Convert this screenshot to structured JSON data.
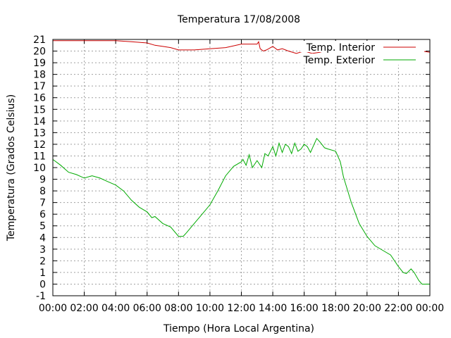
{
  "chart_data": {
    "type": "line",
    "title": "Temperatura 17/08/2008",
    "xlabel": "Tiempo (Hora Local Argentina)",
    "ylabel": "Temperatura (Grados Celsius)",
    "x_unit": "hours",
    "xlim": [
      0,
      24
    ],
    "ylim": [
      -1,
      21
    ],
    "x_ticks": [
      {
        "value": 0,
        "label": "00:00"
      },
      {
        "value": 2,
        "label": "02:00"
      },
      {
        "value": 4,
        "label": "04:00"
      },
      {
        "value": 6,
        "label": "06:00"
      },
      {
        "value": 8,
        "label": "08:00"
      },
      {
        "value": 10,
        "label": "10:00"
      },
      {
        "value": 12,
        "label": "12:00"
      },
      {
        "value": 14,
        "label": "14:00"
      },
      {
        "value": 16,
        "label": "16:00"
      },
      {
        "value": 18,
        "label": "18:00"
      },
      {
        "value": 20,
        "label": "20:00"
      },
      {
        "value": 22,
        "label": "22:00"
      },
      {
        "value": 24,
        "label": "00:00"
      }
    ],
    "y_ticks": [
      -1,
      0,
      1,
      2,
      3,
      4,
      5,
      6,
      7,
      8,
      9,
      10,
      11,
      12,
      13,
      14,
      15,
      16,
      17,
      18,
      19,
      20,
      21
    ],
    "grid": true,
    "legend_position": "top-right",
    "series": [
      {
        "name": "Temp. Interior",
        "color": "#cc0000",
        "x": [
          0,
          2,
          4,
          5,
          6,
          6.5,
          7,
          7.5,
          8,
          9,
          10,
          11,
          12,
          12.5,
          13,
          13.1,
          13.2,
          13.4,
          13.6,
          14,
          14.3,
          14.6,
          15,
          15.5,
          16,
          16.5,
          17,
          17.5,
          18,
          19,
          20,
          21,
          22,
          23,
          24
        ],
        "y": [
          20.9,
          20.9,
          20.9,
          20.8,
          20.7,
          20.5,
          20.4,
          20.3,
          20.1,
          20.1,
          20.2,
          20.3,
          20.6,
          20.6,
          20.6,
          20.8,
          20.2,
          20.0,
          20.1,
          20.4,
          20.1,
          20.2,
          20.0,
          19.8,
          20.0,
          19.8,
          19.9,
          20.1,
          20.1,
          20.2,
          20.2,
          20.2,
          20.1,
          20.1,
          19.9
        ]
      },
      {
        "name": "Temp. Exterior",
        "color": "#00aa00",
        "x": [
          0,
          0.5,
          1,
          1.5,
          2,
          2.5,
          3,
          3.5,
          4,
          4.5,
          5,
          5.5,
          6,
          6.3,
          6.5,
          7,
          7.5,
          8,
          8.3,
          8.5,
          9,
          9.5,
          10,
          10.5,
          11,
          11.5,
          12,
          12.1,
          12.3,
          12.5,
          12.7,
          13,
          13.3,
          13.5,
          13.7,
          14,
          14.2,
          14.4,
          14.6,
          14.8,
          15,
          15.2,
          15.4,
          15.6,
          15.8,
          16,
          16.2,
          16.4,
          16.6,
          16.8,
          17,
          17.3,
          17.5,
          18,
          18.3,
          18.5,
          19,
          19.5,
          20,
          20.5,
          21,
          21.5,
          22,
          22.3,
          22.5,
          22.8,
          23,
          23.3,
          23.5,
          24
        ],
        "y": [
          10.7,
          10.2,
          9.6,
          9.4,
          9.1,
          9.3,
          9.1,
          8.8,
          8.5,
          8.0,
          7.2,
          6.6,
          6.2,
          5.7,
          5.8,
          5.2,
          4.9,
          4.1,
          4.1,
          4.4,
          5.2,
          6.0,
          6.8,
          8.0,
          9.3,
          10.1,
          10.5,
          10.7,
          10.2,
          11.1,
          10.0,
          10.6,
          10.0,
          11.2,
          11.0,
          11.8,
          11.0,
          12.1,
          11.3,
          12.0,
          11.8,
          11.2,
          12.1,
          11.4,
          11.6,
          12.0,
          11.8,
          11.3,
          11.9,
          12.5,
          12.2,
          11.7,
          11.6,
          11.4,
          10.5,
          9.2,
          7.0,
          5.2,
          4.1,
          3.3,
          2.9,
          2.5,
          1.5,
          1.0,
          0.9,
          1.3,
          1.0,
          0.3,
          0.0,
          0.0
        ]
      }
    ]
  }
}
